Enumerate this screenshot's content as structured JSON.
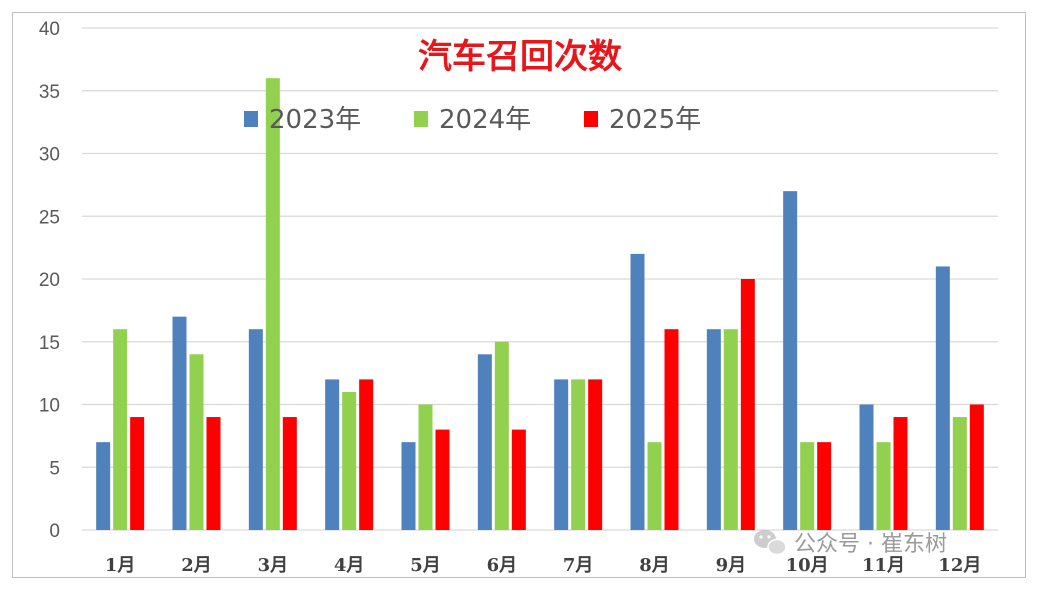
{
  "chart_data": {
    "type": "bar",
    "title": "汽车召回次数",
    "categories": [
      "1月",
      "2月",
      "3月",
      "4月",
      "5月",
      "6月",
      "7月",
      "8月",
      "9月",
      "10月",
      "11月",
      "12月"
    ],
    "series": [
      {
        "name": "2023年",
        "color": "#4f81bd",
        "values": [
          7,
          17,
          16,
          12,
          7,
          14,
          12,
          22,
          16,
          27,
          10,
          21
        ]
      },
      {
        "name": "2024年",
        "color": "#92d050",
        "values": [
          16,
          14,
          36,
          11,
          10,
          15,
          12,
          7,
          16,
          7,
          7,
          9
        ]
      },
      {
        "name": "2025年",
        "color": "#ff0000",
        "values": [
          9,
          9,
          9,
          12,
          8,
          8,
          12,
          16,
          20,
          7,
          9,
          10
        ]
      }
    ],
    "ylim": [
      0,
      40
    ],
    "yticks": [
      0,
      5,
      10,
      15,
      20,
      25,
      30,
      35,
      40
    ],
    "grid": true,
    "legend_position": "top"
  },
  "watermark": {
    "text": "公众号 · 崔东树",
    "icon": "wechat-icon"
  }
}
